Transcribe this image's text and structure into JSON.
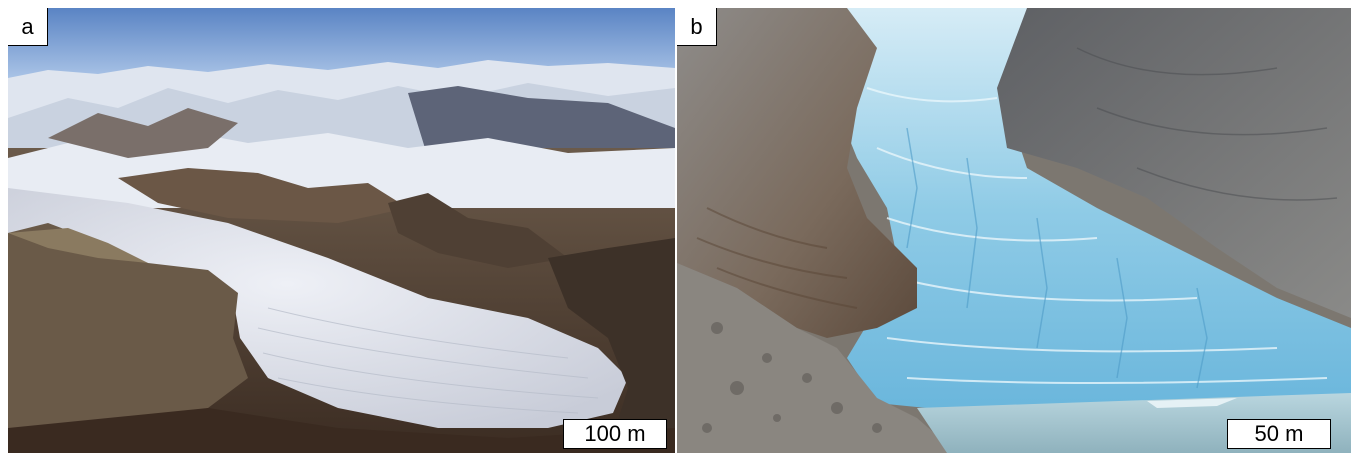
{
  "panels": [
    {
      "label": "a",
      "scale_label": "100 m"
    },
    {
      "label": "b",
      "scale_label": "50 m"
    }
  ]
}
